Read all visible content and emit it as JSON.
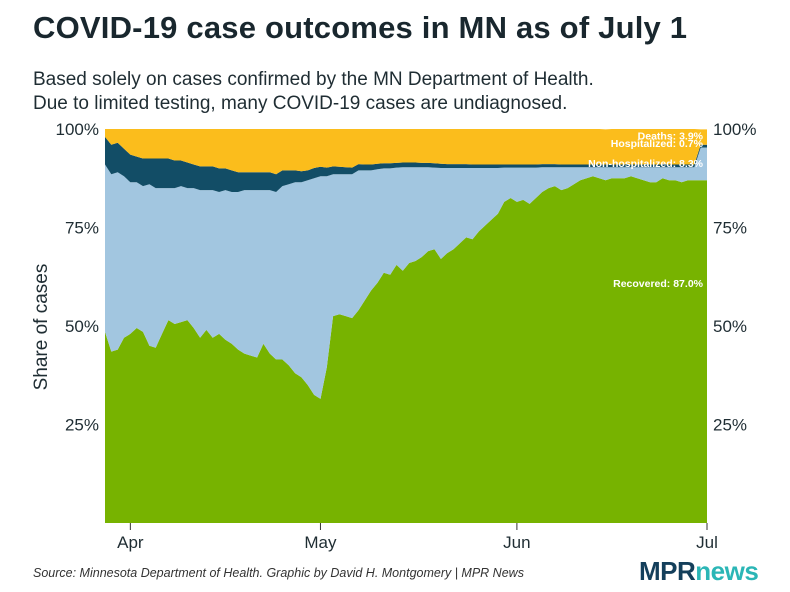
{
  "title": "COVID-19 case outcomes in MN as of July 1",
  "subtitle_lines": [
    "Based solely on cases confirmed by the MN Department of Health.",
    "Due to limited testing, many COVID-19 cases are undiagnosed."
  ],
  "source": "Source: Minnesota Department of Health. Graphic by David H. Montgomery | MPR News",
  "logo": {
    "mpr": "MPR",
    "news": "news"
  },
  "chart_data": {
    "type": "area",
    "stacked": true,
    "ylabel": "Share of cases",
    "x_ticks": [
      {
        "label": "Apr",
        "date": "2020-04-01"
      },
      {
        "label": "May",
        "date": "2020-05-01"
      },
      {
        "label": "Jun",
        "date": "2020-06-01"
      },
      {
        "label": "Jul",
        "date": "2020-07-01"
      }
    ],
    "y_ticks": [
      "25%",
      "50%",
      "75%",
      "100%"
    ],
    "ylim": [
      0,
      100
    ],
    "x_range": [
      "2020-03-28",
      "2020-07-01"
    ],
    "grid": false,
    "colors": {
      "Recovered": "#77b300",
      "Non-hospitalized": "#a2c6e0",
      "Hospitalized": "#124d66",
      "Deaths": "#fbbd1c"
    },
    "end_labels": [
      {
        "text": "Deaths: 3.9%",
        "series": "Deaths"
      },
      {
        "text": "Hospitalized: 0.7%",
        "series": "Hospitalized"
      },
      {
        "text": "Non-hospitalized: 8.3%",
        "series": "Non-hospitalized"
      },
      {
        "text": "Recovered: 87.0%",
        "series": "Recovered"
      }
    ],
    "x": [
      "2020-03-28",
      "2020-03-29",
      "2020-03-30",
      "2020-03-31",
      "2020-04-01",
      "2020-04-02",
      "2020-04-03",
      "2020-04-04",
      "2020-04-05",
      "2020-04-06",
      "2020-04-07",
      "2020-04-08",
      "2020-04-09",
      "2020-04-10",
      "2020-04-11",
      "2020-04-12",
      "2020-04-13",
      "2020-04-14",
      "2020-04-15",
      "2020-04-16",
      "2020-04-17",
      "2020-04-18",
      "2020-04-19",
      "2020-04-20",
      "2020-04-21",
      "2020-04-22",
      "2020-04-23",
      "2020-04-24",
      "2020-04-25",
      "2020-04-26",
      "2020-04-27",
      "2020-04-28",
      "2020-04-29",
      "2020-04-30",
      "2020-05-01",
      "2020-05-02",
      "2020-05-03",
      "2020-05-04",
      "2020-05-05",
      "2020-05-06",
      "2020-05-07",
      "2020-05-08",
      "2020-05-09",
      "2020-05-10",
      "2020-05-11",
      "2020-05-12",
      "2020-05-13",
      "2020-05-14",
      "2020-05-15",
      "2020-05-16",
      "2020-05-17",
      "2020-05-18",
      "2020-05-19",
      "2020-05-20",
      "2020-05-21",
      "2020-05-22",
      "2020-05-23",
      "2020-05-24",
      "2020-05-25",
      "2020-05-26",
      "2020-05-27",
      "2020-05-28",
      "2020-05-29",
      "2020-05-30",
      "2020-05-31",
      "2020-06-01",
      "2020-06-02",
      "2020-06-03",
      "2020-06-04",
      "2020-06-05",
      "2020-06-06",
      "2020-06-07",
      "2020-06-08",
      "2020-06-09",
      "2020-06-10",
      "2020-06-11",
      "2020-06-12",
      "2020-06-13",
      "2020-06-14",
      "2020-06-15",
      "2020-06-16",
      "2020-06-17",
      "2020-06-18",
      "2020-06-19",
      "2020-06-20",
      "2020-06-21",
      "2020-06-22",
      "2020-06-23",
      "2020-06-24",
      "2020-06-25",
      "2020-06-26",
      "2020-06-27",
      "2020-06-28",
      "2020-06-29",
      "2020-06-30",
      "2020-07-01"
    ],
    "series": [
      {
        "name": "Recovered",
        "values": [
          48.5,
          43.5,
          44.0,
          47.0,
          48.0,
          49.5,
          48.5,
          45.0,
          44.5,
          48.0,
          51.5,
          50.5,
          51.0,
          51.5,
          49.5,
          47.0,
          49.0,
          47.0,
          48.0,
          46.5,
          45.5,
          44.0,
          43.0,
          42.5,
          42.0,
          45.5,
          43.0,
          41.5,
          41.5,
          40.0,
          38.0,
          37.0,
          35.0,
          32.5,
          31.5,
          39.5,
          52.5,
          53.0,
          52.5,
          52.0,
          54.0,
          56.5,
          59.0,
          61.0,
          63.5,
          63.0,
          65.5,
          64.0,
          66.0,
          66.5,
          67.5,
          69.0,
          69.5,
          67.0,
          68.5,
          69.5,
          71.0,
          72.5,
          72.0,
          74.0,
          75.5,
          77.0,
          78.5,
          81.5,
          82.5,
          81.5,
          82.0,
          81.0,
          82.5,
          84.0,
          85.0,
          85.5,
          84.5,
          85.0,
          86.0,
          87.0,
          87.5,
          88.0,
          87.5,
          87.0,
          87.5,
          87.5,
          87.5,
          88.0,
          87.5,
          87.0,
          86.5,
          86.5,
          87.5,
          87.0,
          87.0,
          86.5,
          87.0,
          87.0,
          87.0,
          87.0
        ]
      },
      {
        "name": "Non-hospitalized",
        "values": [
          42.5,
          45.0,
          45.0,
          41.0,
          38.5,
          37.0,
          37.0,
          41.0,
          40.5,
          37.0,
          33.5,
          34.5,
          34.5,
          33.5,
          35.5,
          37.5,
          35.5,
          37.5,
          36.0,
          38.0,
          38.5,
          40.0,
          41.5,
          42.0,
          42.5,
          39.0,
          41.5,
          42.5,
          44.0,
          46.0,
          48.5,
          49.5,
          52.0,
          55.0,
          56.5,
          48.5,
          36.0,
          35.5,
          36.0,
          36.5,
          35.5,
          33.0,
          30.5,
          28.8,
          26.5,
          27.0,
          24.7,
          26.3,
          24.3,
          23.8,
          22.8,
          21.3,
          20.7,
          23.1,
          21.6,
          20.6,
          19.1,
          17.6,
          18.1,
          16.1,
          14.6,
          13.1,
          11.6,
          8.7,
          7.7,
          8.7,
          8.2,
          9.2,
          7.7,
          6.3,
          5.3,
          4.8,
          5.8,
          5.3,
          4.3,
          3.3,
          2.8,
          2.3,
          2.8,
          3.3,
          2.8,
          2.8,
          2.8,
          2.3,
          2.8,
          3.3,
          3.8,
          3.8,
          2.8,
          3.3,
          3.3,
          3.8,
          3.3,
          3.3,
          8.3,
          8.3
        ]
      },
      {
        "name": "Hospitalized",
        "values": [
          7.0,
          7.5,
          7.5,
          7.0,
          7.0,
          6.5,
          7.0,
          6.5,
          7.5,
          7.5,
          7.5,
          7.0,
          6.5,
          6.5,
          6.0,
          6.0,
          6.0,
          6.0,
          6.0,
          5.5,
          5.5,
          5.0,
          4.5,
          4.5,
          4.5,
          4.5,
          4.5,
          4.5,
          4.0,
          3.5,
          3.0,
          2.8,
          2.5,
          2.6,
          2.4,
          2.2,
          2.0,
          1.9,
          1.8,
          1.7,
          1.6,
          1.5,
          1.5,
          1.4,
          1.3,
          1.3,
          1.2,
          1.2,
          1.2,
          1.2,
          1.1,
          1.1,
          1.1,
          1.1,
          1.0,
          1.0,
          1.0,
          1.0,
          0.9,
          0.9,
          0.9,
          0.9,
          0.9,
          0.8,
          0.8,
          0.8,
          0.8,
          0.8,
          0.8,
          0.8,
          0.8,
          0.8,
          0.7,
          0.7,
          0.7,
          0.7,
          0.7,
          0.7,
          0.7,
          0.7,
          0.7,
          0.7,
          0.7,
          0.7,
          0.7,
          0.7,
          0.7,
          0.7,
          0.7,
          0.7,
          0.7,
          0.7,
          0.7,
          0.7,
          0.7,
          0.7
        ]
      },
      {
        "name": "Deaths",
        "values": [
          2.0,
          4.0,
          3.5,
          5.0,
          6.5,
          7.0,
          7.5,
          7.5,
          7.5,
          7.5,
          7.5,
          8.0,
          8.0,
          8.5,
          9.0,
          9.5,
          9.5,
          9.5,
          10.0,
          10.0,
          10.5,
          11.0,
          11.0,
          11.0,
          11.0,
          11.0,
          11.0,
          11.5,
          10.5,
          10.5,
          10.5,
          10.7,
          10.5,
          9.9,
          9.6,
          9.8,
          9.5,
          9.6,
          9.7,
          9.8,
          8.9,
          9.0,
          9.0,
          8.8,
          8.7,
          8.7,
          8.6,
          8.5,
          8.5,
          8.5,
          8.6,
          8.6,
          8.7,
          8.8,
          8.9,
          8.9,
          8.9,
          8.9,
          9.0,
          9.0,
          9.0,
          9.0,
          9.0,
          9.0,
          9.0,
          9.0,
          9.0,
          9.0,
          9.0,
          8.9,
          8.9,
          8.9,
          9.0,
          9.0,
          9.0,
          9.0,
          9.0,
          9.0,
          9.0,
          8.9,
          9.0,
          9.0,
          9.0,
          9.0,
          9.0,
          9.0,
          9.0,
          9.0,
          9.0,
          9.0,
          9.0,
          9.0,
          9.0,
          9.0,
          3.9,
          3.9
        ]
      }
    ]
  }
}
